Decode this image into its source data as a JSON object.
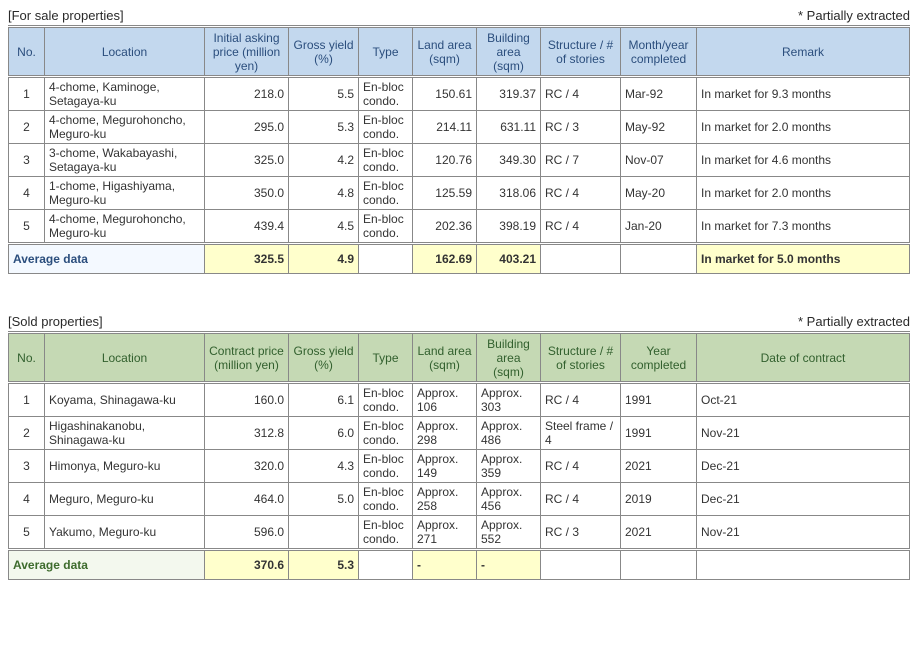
{
  "forSale": {
    "title": "[For sale properties]",
    "note": "* Partially extracted",
    "columns": [
      "No.",
      "Location",
      "Initial asking price (million yen)",
      "Gross yield (%)",
      "Type",
      "Land area (sqm)",
      "Building area (sqm)",
      "Structure / # of stories",
      "Month/year completed",
      "Remark"
    ],
    "rows": [
      {
        "no": "1",
        "loc": "4-chome, Kaminoge, Setagaya-ku",
        "price": "218.0",
        "yield": "5.5",
        "type": "En-bloc condo.",
        "land": "150.61",
        "bldg": "319.37",
        "struct": "RC / 4",
        "comp": "Mar-92",
        "remark": "In market for 9.3 months"
      },
      {
        "no": "2",
        "loc": "4-chome, Megurohoncho, Meguro-ku",
        "price": "295.0",
        "yield": "5.3",
        "type": "En-bloc condo.",
        "land": "214.11",
        "bldg": "631.11",
        "struct": "RC / 3",
        "comp": "May-92",
        "remark": "In market for 2.0 months"
      },
      {
        "no": "3",
        "loc": "3-chome, Wakabayashi, Setagaya-ku",
        "price": "325.0",
        "yield": "4.2",
        "type": "En-bloc condo.",
        "land": "120.76",
        "bldg": "349.30",
        "struct": "RC / 7",
        "comp": "Nov-07",
        "remark": "In market for 4.6 months"
      },
      {
        "no": "4",
        "loc": "1-chome, Higashiyama, Meguro-ku",
        "price": "350.0",
        "yield": "4.8",
        "type": "En-bloc condo.",
        "land": "125.59",
        "bldg": "318.06",
        "struct": "RC / 4",
        "comp": "May-20",
        "remark": "In market for 2.0 months"
      },
      {
        "no": "5",
        "loc": "4-chome, Megurohoncho, Meguro-ku",
        "price": "439.4",
        "yield": "4.5",
        "type": "En-bloc condo.",
        "land": "202.36",
        "bldg": "398.19",
        "struct": "RC / 4",
        "comp": "Jan-20",
        "remark": "In market for 7.3 months"
      }
    ],
    "avgLabel": "Average data",
    "avg": {
      "price": "325.5",
      "yield": "4.9",
      "land": "162.69",
      "bldg": "403.21",
      "remark": "In market for 5.0 months"
    }
  },
  "sold": {
    "title": "[Sold properties]",
    "note": "* Partially extracted",
    "columns": [
      "No.",
      "Location",
      "Contract price (million yen)",
      "Gross yield (%)",
      "Type",
      "Land area (sqm)",
      "Building area (sqm)",
      "Structure / # of stories",
      "Year completed",
      "Date of contract"
    ],
    "rows": [
      {
        "no": "1",
        "loc": "Koyama, Shinagawa-ku",
        "price": "160.0",
        "yield": "6.1",
        "type": "En-bloc condo.",
        "land": "Approx. 106",
        "bldg": "Approx. 303",
        "struct": "RC / 4",
        "comp": "1991",
        "remark": "Oct-21"
      },
      {
        "no": "2",
        "loc": "Higashinakanobu, Shinagawa-ku",
        "price": "312.8",
        "yield": "6.0",
        "type": "En-bloc condo.",
        "land": "Approx. 298",
        "bldg": "Approx. 486",
        "struct": "Steel frame / 4",
        "comp": "1991",
        "remark": "Nov-21"
      },
      {
        "no": "3",
        "loc": "Himonya, Meguro-ku",
        "price": "320.0",
        "yield": "4.3",
        "type": "En-bloc condo.",
        "land": "Approx. 149",
        "bldg": "Approx. 359",
        "struct": "RC / 4",
        "comp": "2021",
        "remark": "Dec-21"
      },
      {
        "no": "4",
        "loc": "Meguro, Meguro-ku",
        "price": "464.0",
        "yield": "5.0",
        "type": "En-bloc condo.",
        "land": "Approx. 258",
        "bldg": "Approx. 456",
        "struct": "RC / 4",
        "comp": "2019",
        "remark": "Dec-21"
      },
      {
        "no": "5",
        "loc": "Yakumo, Meguro-ku",
        "price": "596.0",
        "yield": "",
        "type": "En-bloc condo.",
        "land": "Approx. 271",
        "bldg": "Approx. 552",
        "struct": "RC / 3",
        "comp": "2021",
        "remark": "Nov-21"
      }
    ],
    "avgLabel": "Average data",
    "avg": {
      "price": "370.6",
      "yield": "5.3",
      "land": "-",
      "bldg": "-",
      "remark": ""
    }
  }
}
